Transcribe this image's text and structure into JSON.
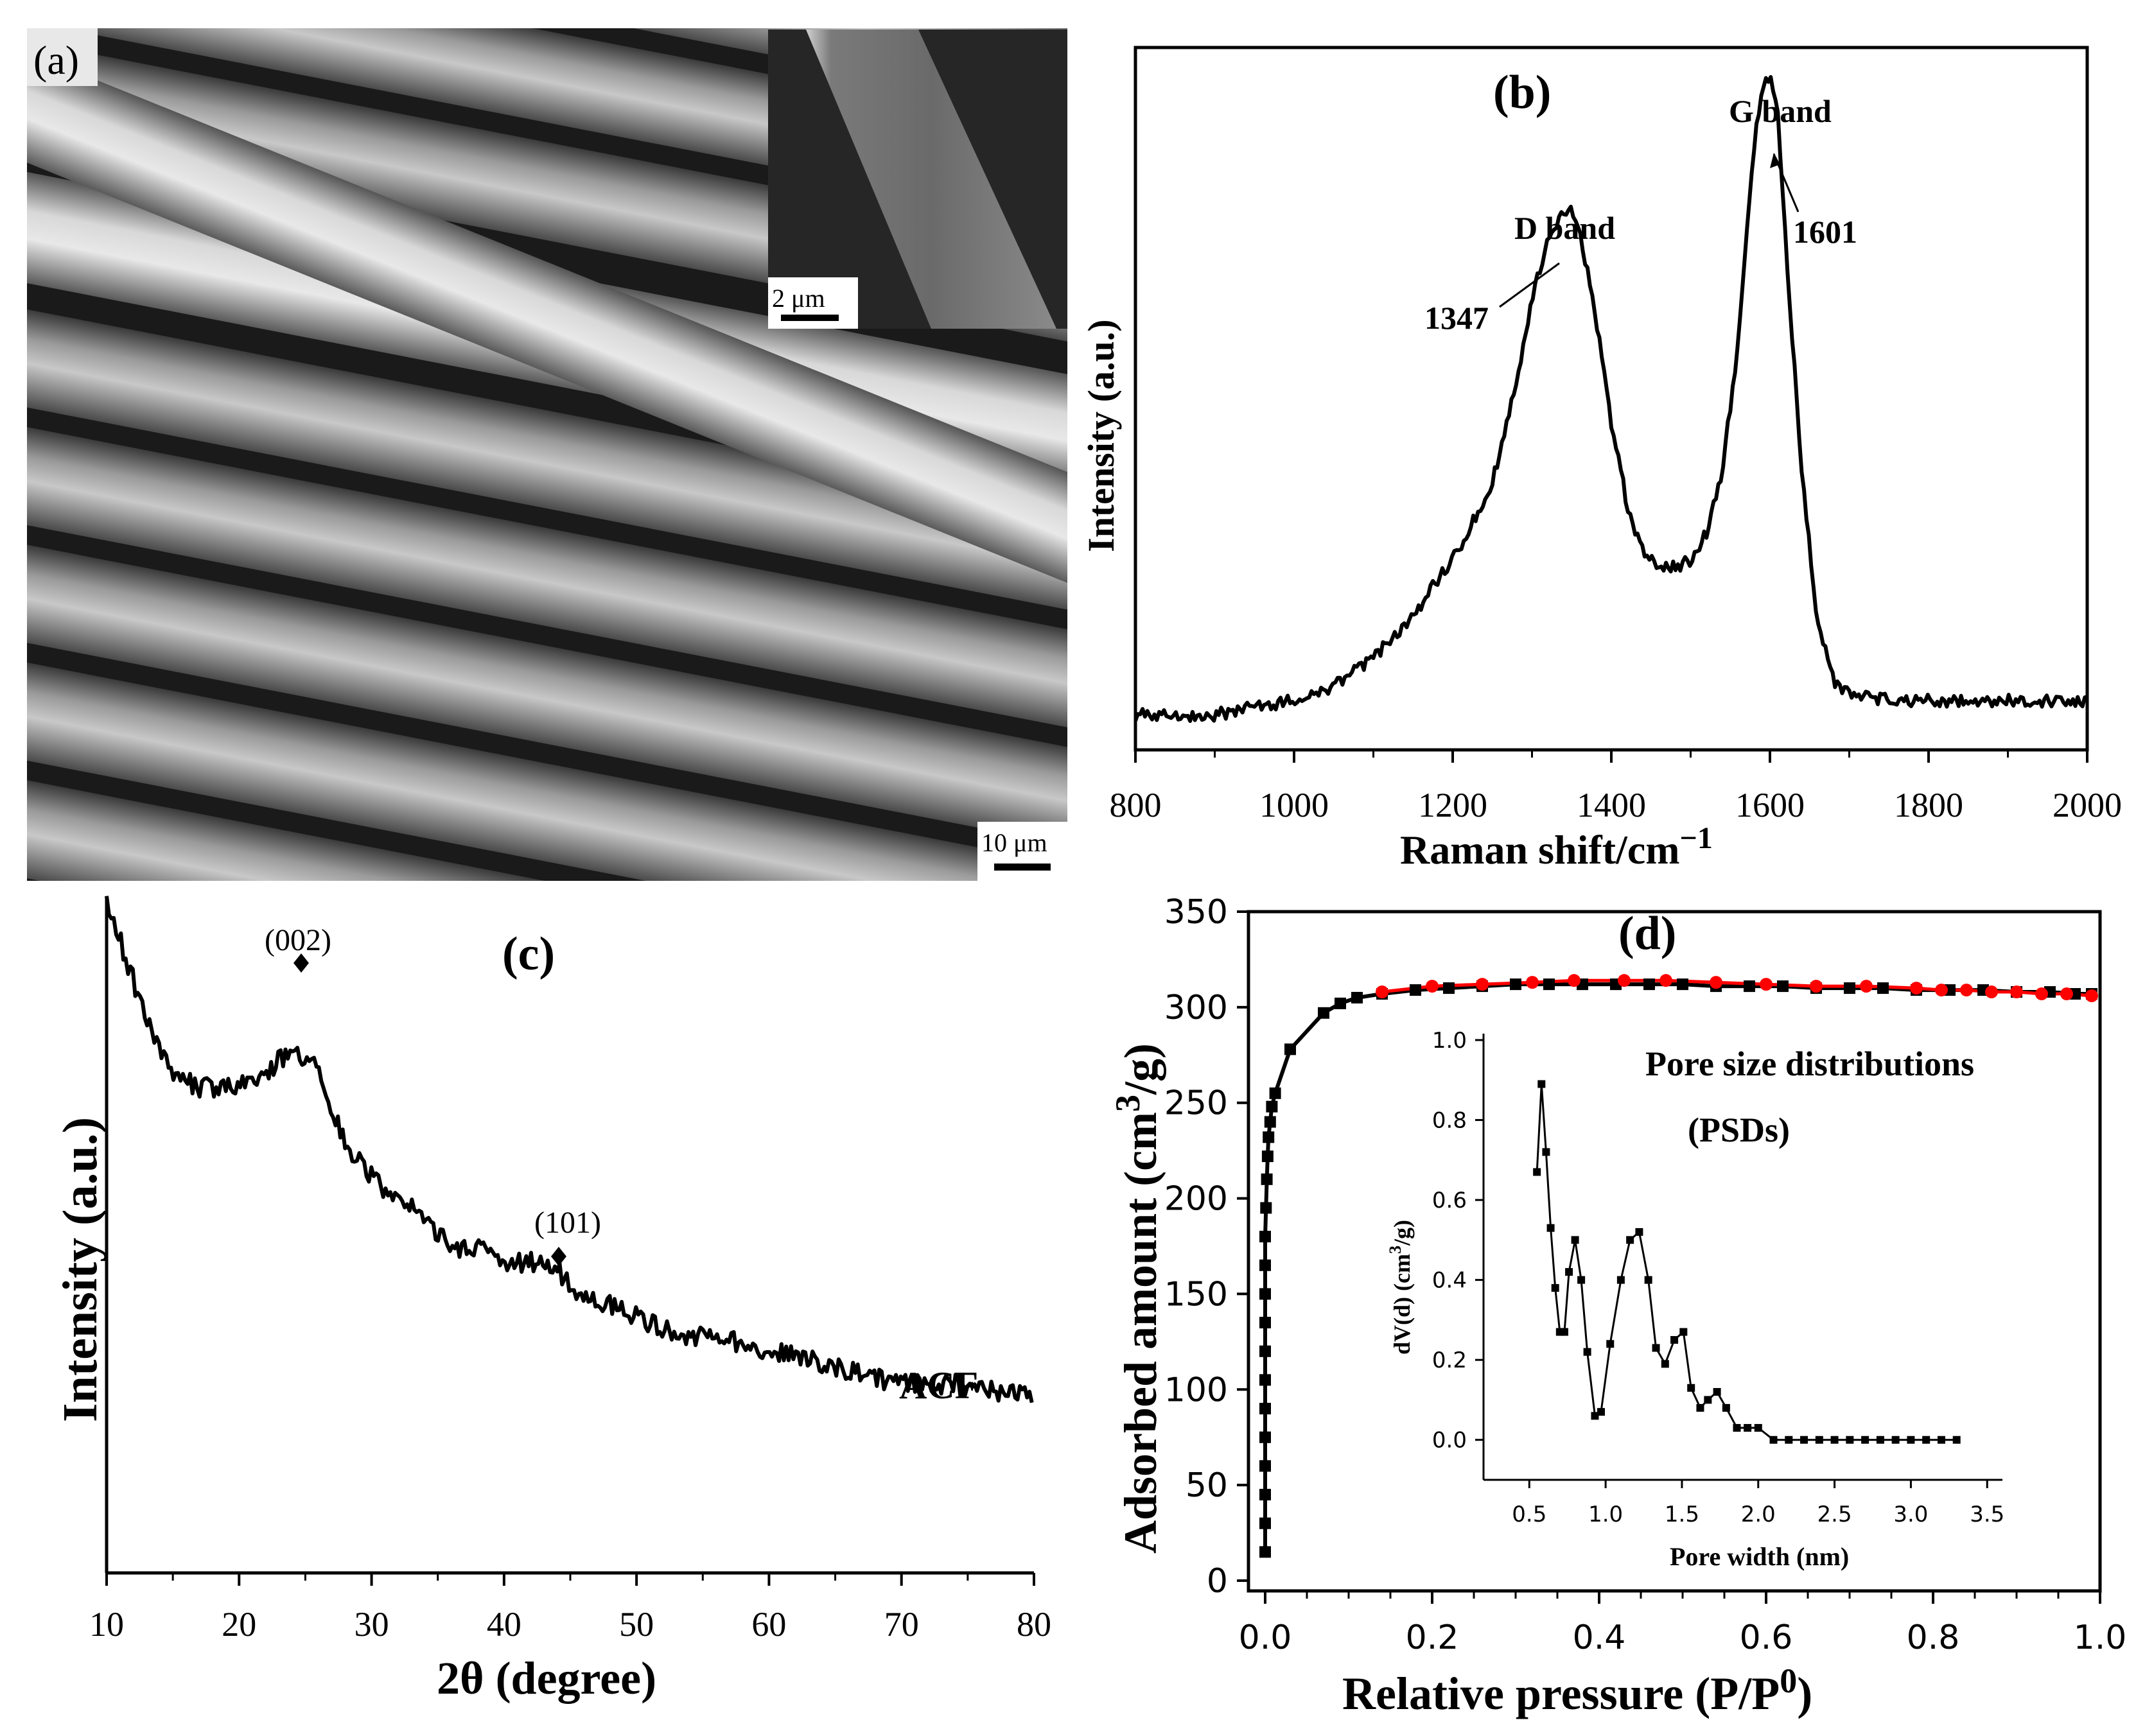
{
  "panels": {
    "a": {
      "label": "(a)",
      "inset_scale": "2 μm",
      "main_scale": "10 μm"
    }
  },
  "chart_data": [
    {
      "id": "b",
      "type": "line",
      "panel_label": "(b)",
      "xlabel": "Raman shift/cm",
      "xlabel_sup": "−1",
      "ylabel": "Intensity (a.u.)",
      "xlim": [
        800,
        2000
      ],
      "ylim": [
        0,
        1
      ],
      "xticks": [
        800,
        1000,
        1200,
        1400,
        1600,
        1800,
        2000
      ],
      "yticks_shown": false,
      "annotations": [
        {
          "text": "D band",
          "x": 1347,
          "y": 0.78
        },
        {
          "text": "1347",
          "x": 1347,
          "y": 0.76
        },
        {
          "text": "G band",
          "x": 1601,
          "y": 0.96
        },
        {
          "text": "1601",
          "x": 1601,
          "y": 0.94
        }
      ],
      "series": [
        {
          "x": [
            800,
            850,
            900,
            950,
            1000,
            1050,
            1100,
            1150,
            1180,
            1200,
            1250,
            1280,
            1300,
            1320,
            1340,
            1347,
            1360,
            1380,
            1400,
            1420,
            1440,
            1460,
            1480,
            1500,
            1520,
            1540,
            1560,
            1570,
            1580,
            1590,
            1601,
            1610,
            1620,
            1640,
            1660,
            1680,
            1700,
            1750,
            1800,
            1850,
            1900,
            1950,
            2000
          ],
          "y": [
            0.05,
            0.05,
            0.05,
            0.06,
            0.07,
            0.09,
            0.13,
            0.19,
            0.24,
            0.27,
            0.38,
            0.52,
            0.64,
            0.73,
            0.77,
            0.77,
            0.74,
            0.62,
            0.46,
            0.35,
            0.28,
            0.26,
            0.26,
            0.27,
            0.31,
            0.4,
            0.58,
            0.72,
            0.86,
            0.94,
            0.96,
            0.9,
            0.72,
            0.4,
            0.18,
            0.1,
            0.08,
            0.07,
            0.07,
            0.07,
            0.07,
            0.07,
            0.07
          ]
        }
      ]
    },
    {
      "id": "c",
      "type": "line",
      "panel_label": "(c)",
      "xlabel": "2θ (degree)",
      "ylabel": "Intensity (a.u.)",
      "xlim": [
        10,
        80
      ],
      "ylim": [
        0,
        1
      ],
      "xticks": [
        10,
        20,
        30,
        40,
        50,
        60,
        70,
        80
      ],
      "yticks_shown": false,
      "legend": "ACF",
      "annotations": [
        {
          "text": "(002)",
          "x": 24.8,
          "y": 0.77
        },
        {
          "text": "(101)",
          "x": 44.3,
          "y": 0.47
        }
      ],
      "series": [
        {
          "name": "ACF",
          "x": [
            10,
            11,
            12,
            13,
            14,
            15,
            16,
            17,
            18,
            19,
            20,
            21,
            22,
            23,
            24,
            25,
            26,
            27,
            28,
            29,
            30,
            31,
            32,
            33,
            34,
            35,
            36,
            37,
            38,
            39,
            40,
            41,
            42,
            43,
            44,
            45,
            46,
            48,
            50,
            52,
            54,
            56,
            58,
            60,
            62,
            64,
            66,
            68,
            70,
            72,
            74,
            76,
            78,
            80
          ],
          "y": [
            0.99,
            0.94,
            0.88,
            0.82,
            0.77,
            0.74,
            0.73,
            0.72,
            0.72,
            0.72,
            0.72,
            0.73,
            0.74,
            0.76,
            0.77,
            0.76,
            0.75,
            0.69,
            0.64,
            0.61,
            0.59,
            0.57,
            0.56,
            0.54,
            0.52,
            0.5,
            0.49,
            0.48,
            0.48,
            0.47,
            0.46,
            0.46,
            0.46,
            0.46,
            0.45,
            0.43,
            0.41,
            0.4,
            0.38,
            0.36,
            0.35,
            0.35,
            0.34,
            0.33,
            0.32,
            0.31,
            0.3,
            0.29,
            0.28,
            0.28,
            0.28,
            0.27,
            0.27,
            0.26
          ]
        }
      ]
    },
    {
      "id": "d",
      "type": "line",
      "panel_label": "(d)",
      "xlabel": "Relative pressure (P/P",
      "xlabel_sup": "0",
      "xlabel_end": ")",
      "ylabel": "Adsorbed amount (cm",
      "ylabel_sup": "3",
      "ylabel_end": "/g)",
      "xlim": [
        -0.02,
        1.0
      ],
      "ylim": [
        0,
        350
      ],
      "xticks": [
        0.0,
        0.2,
        0.4,
        0.6,
        0.8,
        1.0
      ],
      "xtick_labels": [
        "0.0",
        "0.2",
        "0.4",
        "0.6",
        "0.8",
        "1.0"
      ],
      "yticks": [
        0,
        50,
        100,
        150,
        200,
        250,
        300,
        350
      ],
      "series": [
        {
          "role": "adsorption",
          "color": "#000000",
          "marker": "square",
          "x": [
            0.0,
            0.0,
            0.0,
            0.0,
            0.0,
            0.0,
            0.0,
            0.0,
            0.0,
            0.0,
            0.0,
            0.0,
            0.001,
            0.002,
            0.003,
            0.004,
            0.006,
            0.008,
            0.012,
            0.03,
            0.07,
            0.09,
            0.11,
            0.14,
            0.18,
            0.22,
            0.26,
            0.3,
            0.34,
            0.38,
            0.42,
            0.46,
            0.5,
            0.54,
            0.58,
            0.62,
            0.66,
            0.7,
            0.74,
            0.78,
            0.82,
            0.86,
            0.9,
            0.94,
            0.97,
            0.99
          ],
          "y": [
            15,
            30,
            45,
            60,
            75,
            90,
            105,
            120,
            135,
            150,
            165,
            180,
            195,
            210,
            222,
            232,
            240,
            248,
            255,
            278,
            297,
            302,
            305,
            307,
            309,
            310,
            311,
            312,
            312,
            312,
            312,
            312,
            312,
            311,
            311,
            311,
            310,
            310,
            310,
            309,
            309,
            309,
            308,
            308,
            307,
            307
          ]
        },
        {
          "role": "desorption",
          "color": "#ff0000",
          "marker": "circle",
          "x": [
            0.14,
            0.2,
            0.26,
            0.32,
            0.37,
            0.43,
            0.48,
            0.54,
            0.6,
            0.66,
            0.72,
            0.78,
            0.81,
            0.84,
            0.87,
            0.9,
            0.93,
            0.96,
            0.99
          ],
          "y": [
            308,
            311,
            312,
            313,
            314,
            314,
            314,
            313,
            312,
            311,
            311,
            310,
            309,
            309,
            308,
            308,
            307,
            307,
            306
          ]
        }
      ],
      "inset": {
        "title_line1": "Pore size distributions",
        "title_line2": "(PSDs)",
        "xlabel": "Pore width (nm)",
        "ylabel": "dV(d) (cm",
        "ylabel_sup": "3",
        "ylabel_end": "/g)",
        "xlim": [
          0.2,
          3.6
        ],
        "ylim": [
          -0.1,
          1.0
        ],
        "xticks": [
          0.5,
          1.0,
          1.5,
          2.0,
          2.5,
          3.0,
          3.5
        ],
        "xtick_labels": [
          "0.5",
          "1.0",
          "1.5",
          "2.0",
          "2.5",
          "3.0",
          "3.5"
        ],
        "yticks": [
          0.0,
          0.2,
          0.4,
          0.6,
          0.8,
          1.0
        ],
        "ytick_labels": [
          "0.0",
          "0.2",
          "0.4",
          "0.6",
          "0.8",
          "1.0"
        ],
        "series": [
          {
            "marker": "square",
            "x": [
              0.55,
              0.58,
              0.61,
              0.64,
              0.67,
              0.7,
              0.73,
              0.76,
              0.8,
              0.84,
              0.88,
              0.93,
              0.97,
              1.03,
              1.1,
              1.16,
              1.22,
              1.28,
              1.33,
              1.39,
              1.45,
              1.51,
              1.56,
              1.62,
              1.67,
              1.73,
              1.79,
              1.86,
              1.93,
              2.0,
              2.1,
              2.2,
              2.3,
              2.4,
              2.5,
              2.6,
              2.7,
              2.8,
              2.9,
              3.0,
              3.1,
              3.2,
              3.3
            ],
            "y": [
              0.67,
              0.89,
              0.72,
              0.53,
              0.38,
              0.27,
              0.27,
              0.42,
              0.5,
              0.4,
              0.22,
              0.06,
              0.07,
              0.24,
              0.4,
              0.5,
              0.52,
              0.4,
              0.23,
              0.19,
              0.25,
              0.27,
              0.13,
              0.08,
              0.1,
              0.12,
              0.08,
              0.03,
              0.03,
              0.03,
              0.0,
              0.0,
              0.0,
              0.0,
              0.0,
              0.0,
              0.0,
              0.0,
              0.0,
              0.0,
              0.0,
              0.0,
              0.0
            ]
          }
        ]
      }
    }
  ]
}
